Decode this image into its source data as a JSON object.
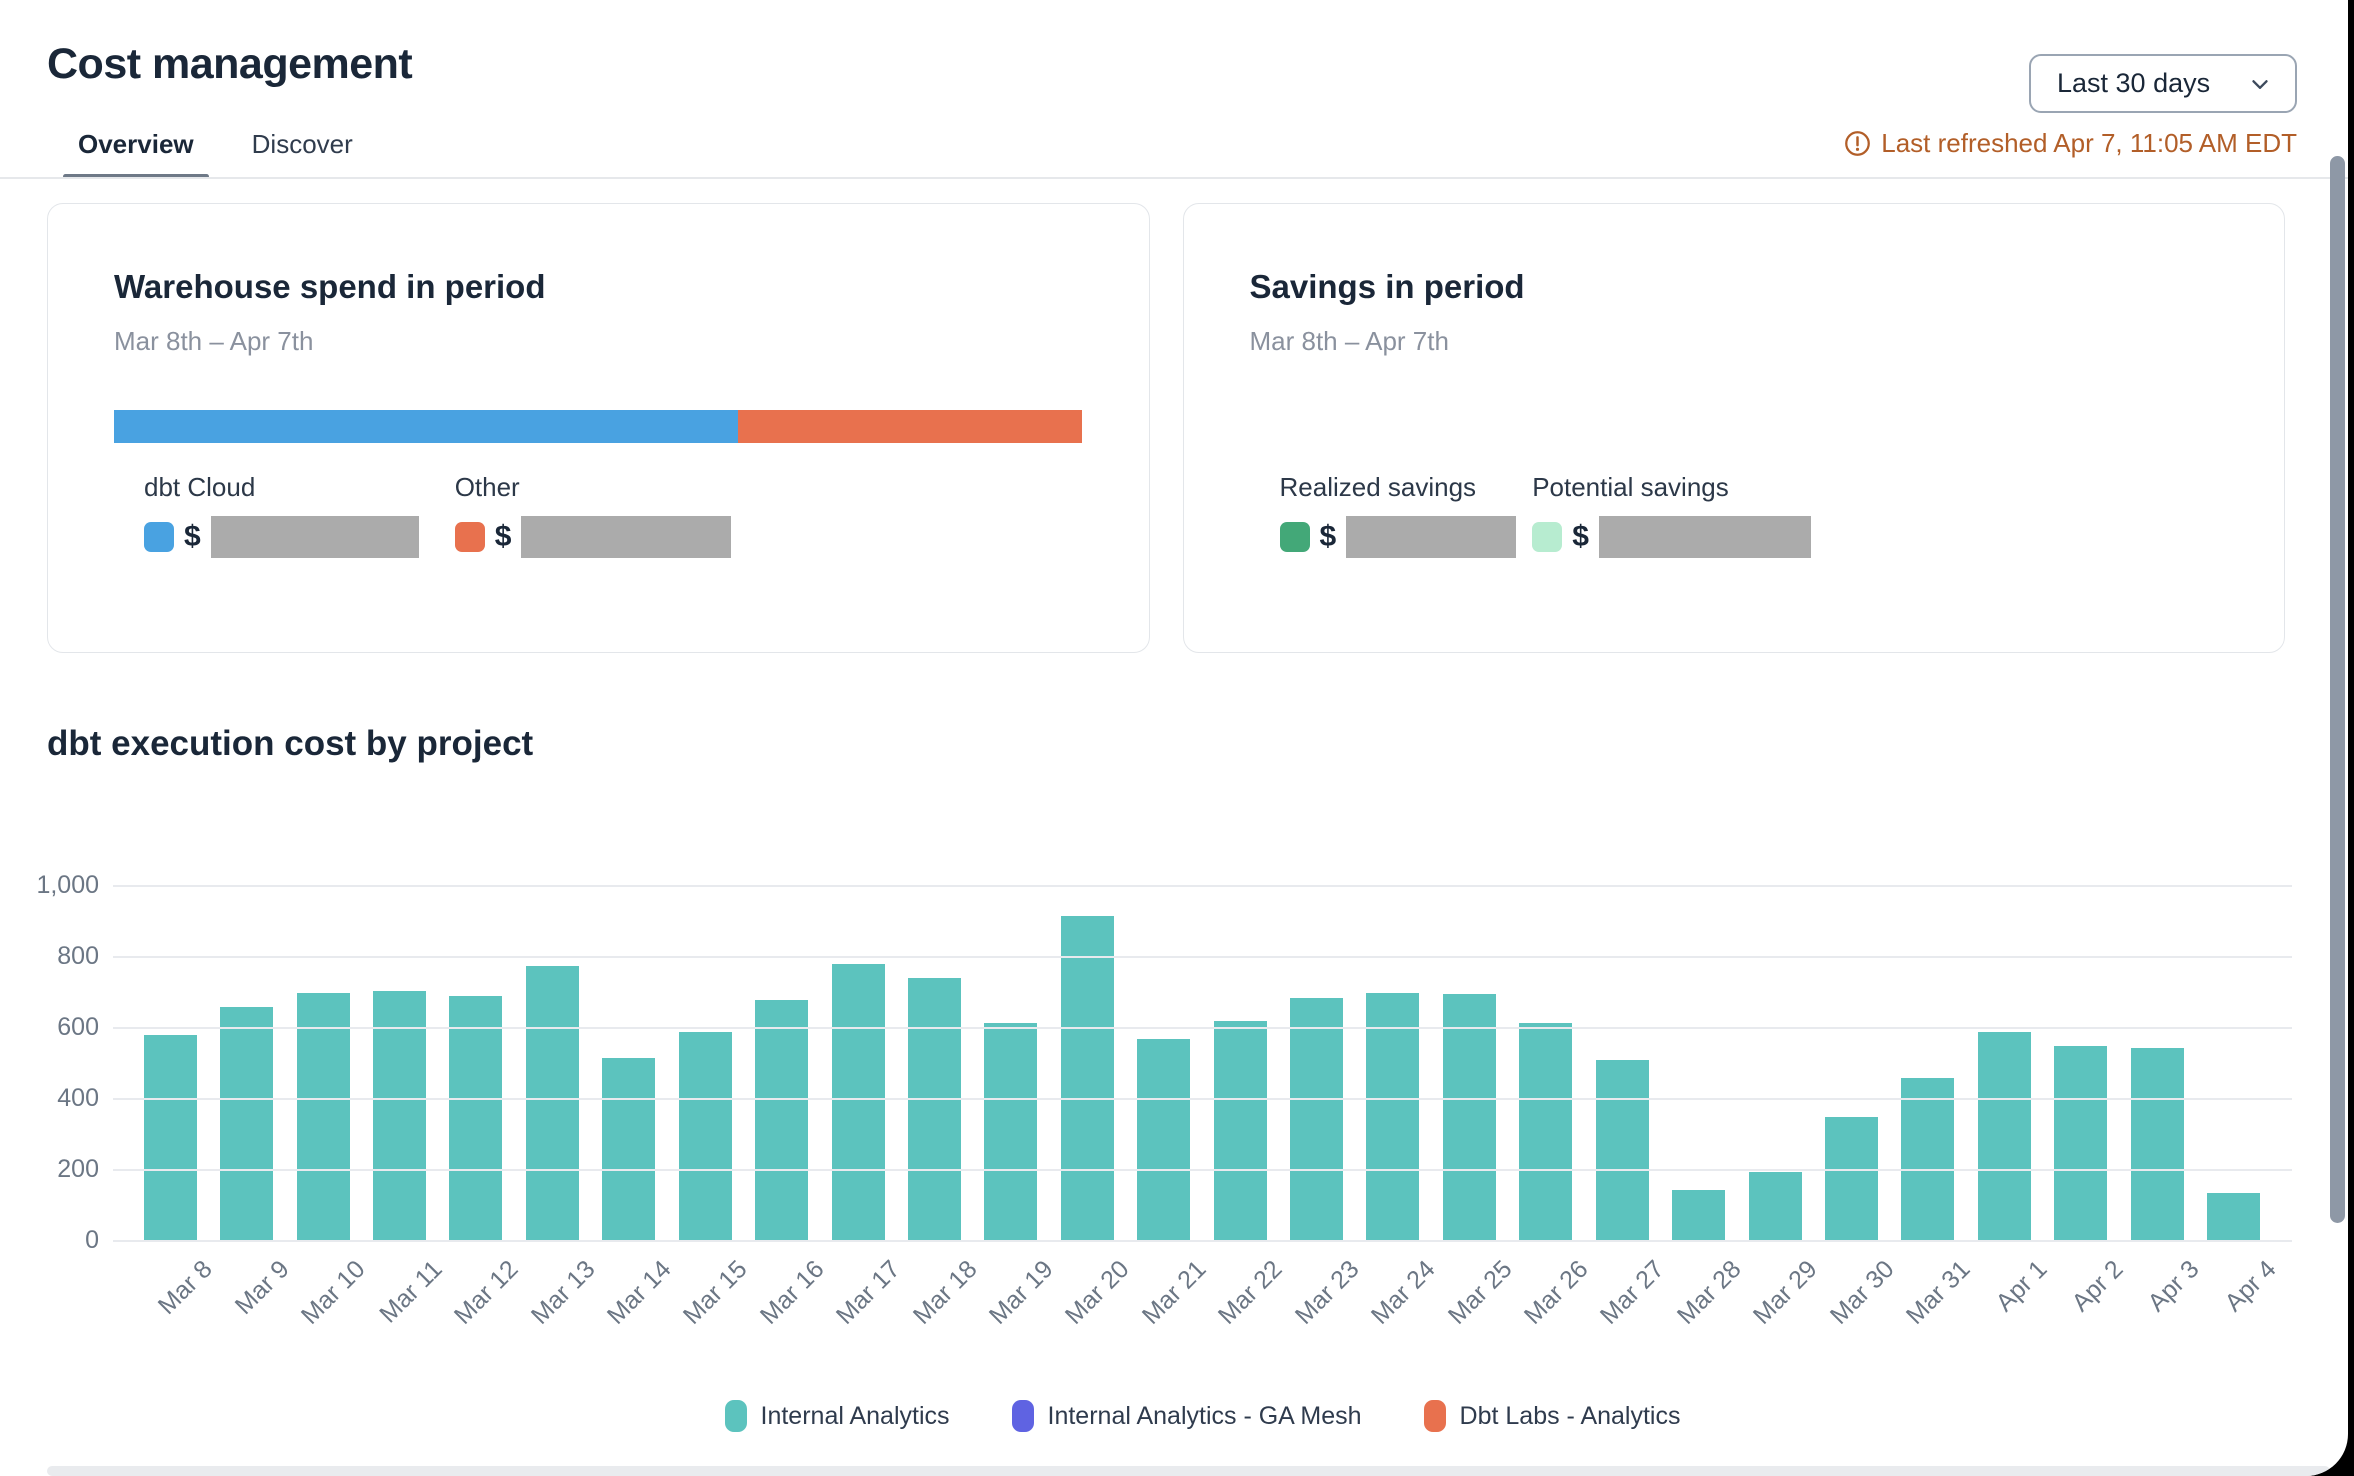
{
  "header": {
    "title": "Cost management",
    "range_selector_value": "Last 30 days",
    "last_refreshed": "Last refreshed Apr 7, 11:05 AM EDT"
  },
  "tabs": [
    {
      "label": "Overview",
      "active": true
    },
    {
      "label": "Discover",
      "active": false
    }
  ],
  "cards": {
    "warehouse": {
      "title": "Warehouse spend in period",
      "subtitle": "Mar 8th – Apr 7th",
      "bar_segments": [
        {
          "label": "dbt Cloud",
          "color": "#49a2e1",
          "pct": 64.4
        },
        {
          "label": "Other",
          "color": "#e8714e",
          "pct": 35.6
        }
      ],
      "legend": [
        {
          "label": "dbt Cloud",
          "color": "#49a2e1",
          "currency": "$",
          "value_redacted": true
        },
        {
          "label": "Other",
          "color": "#e8714e",
          "currency": "$",
          "value_redacted": true
        }
      ]
    },
    "savings": {
      "title": "Savings in period",
      "subtitle": "Mar 8th – Apr 7th",
      "legend": [
        {
          "label": "Realized savings",
          "color": "#43a878",
          "currency": "$",
          "value_redacted": true
        },
        {
          "label": "Potential savings",
          "color": "#b7ecd0",
          "currency": "$",
          "value_redacted": true
        }
      ]
    }
  },
  "chart_data": {
    "type": "bar",
    "title": "dbt execution cost by project",
    "categories": [
      "Mar 8",
      "Mar 9",
      "Mar 10",
      "Mar 11",
      "Mar 12",
      "Mar 13",
      "Mar 14",
      "Mar 15",
      "Mar 16",
      "Mar 17",
      "Mar 18",
      "Mar 19",
      "Mar 20",
      "Mar 21",
      "Mar 22",
      "Mar 23",
      "Mar 24",
      "Mar 25",
      "Mar 26",
      "Mar 27",
      "Mar 28",
      "Mar 29",
      "Mar 30",
      "Mar 31",
      "Apr 1",
      "Apr 2",
      "Apr 3",
      "Apr 4"
    ],
    "series": [
      {
        "name": "Internal Analytics",
        "color": "#5cc3be",
        "values": [
          580,
          660,
          700,
          705,
          690,
          775,
          515,
          590,
          680,
          780,
          740,
          615,
          915,
          570,
          620,
          685,
          700,
          695,
          615,
          510,
          145,
          195,
          350,
          460,
          590,
          550,
          545,
          135
        ]
      },
      {
        "name": "Internal Analytics - GA Mesh",
        "color": "#5f63e2",
        "values": [
          0,
          0,
          0,
          0,
          0,
          0,
          0,
          0,
          0,
          0,
          0,
          0,
          0,
          0,
          0,
          0,
          0,
          0,
          0,
          0,
          0,
          0,
          0,
          0,
          0,
          0,
          0,
          0
        ]
      },
      {
        "name": "Dbt Labs - Analytics",
        "color": "#e8714e",
        "values": [
          0,
          0,
          0,
          0,
          0,
          0,
          0,
          0,
          0,
          0,
          0,
          0,
          0,
          0,
          0,
          0,
          0,
          0,
          0,
          0,
          0,
          0,
          0,
          0,
          0,
          0,
          0,
          0
        ]
      }
    ],
    "xlabel": "",
    "ylabel": "",
    "ylim": [
      0,
      1000
    ],
    "yticks": [
      {
        "value": 0,
        "label": "0"
      },
      {
        "value": 200,
        "label": "200"
      },
      {
        "value": 400,
        "label": "400"
      },
      {
        "value": 600,
        "label": "600"
      },
      {
        "value": 800,
        "label": "800"
      },
      {
        "value": 1000,
        "label": "1,000"
      }
    ],
    "grid": true,
    "legend_position": "bottom"
  }
}
